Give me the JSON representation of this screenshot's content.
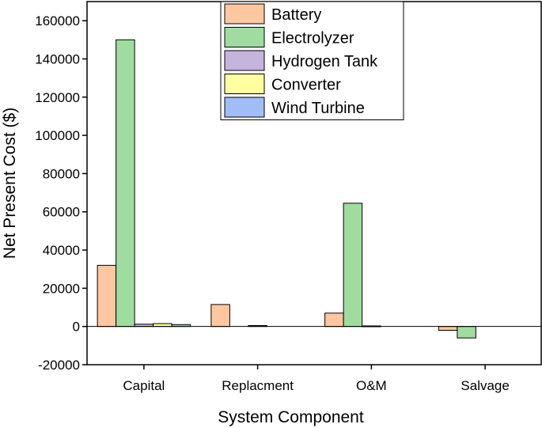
{
  "chart_data": {
    "type": "bar",
    "title": "",
    "xlabel": "System Component",
    "ylabel": "Net Present Cost ($)",
    "ylim": [
      -20000,
      170000
    ],
    "yticks": [
      -20000,
      0,
      20000,
      40000,
      60000,
      80000,
      100000,
      120000,
      140000,
      160000
    ],
    "ytick_labels": [
      "-20000",
      "0",
      "20000",
      "40000",
      "60000",
      "80000",
      "100000",
      "120000",
      "140000",
      "160000"
    ],
    "categories": [
      "Capital",
      "Replacment",
      "O&M",
      "Salvage"
    ],
    "series": [
      {
        "name": "Battery",
        "color": "#FFC7A0",
        "values": [
          32000,
          11500,
          7000,
          -2000
        ]
      },
      {
        "name": "Electrolyzer",
        "color": "#A0DCA0",
        "values": [
          150000,
          0,
          64500,
          -6000
        ]
      },
      {
        "name": "Hydrogen Tank",
        "color": "#C5B4DC",
        "values": [
          1200,
          500,
          300,
          0
        ]
      },
      {
        "name": "Converter",
        "color": "#FFFFA0",
        "values": [
          1500,
          0,
          0,
          0
        ]
      },
      {
        "name": "Wind Turbine",
        "color": "#A0BEF5",
        "values": [
          1000,
          0,
          0,
          0
        ]
      }
    ],
    "grid": false,
    "legend_position": "top-center"
  }
}
